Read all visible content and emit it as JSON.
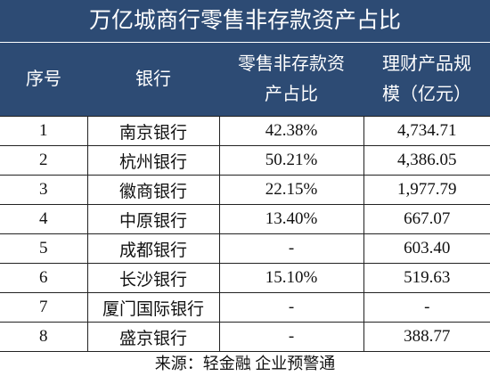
{
  "title": "万亿城商行零售非存款资产占比",
  "table": {
    "header": [
      "序号",
      "银行",
      "零售非存款资产占比",
      "理财产品规模（亿元）"
    ],
    "rows": [
      [
        "1",
        "南京银行",
        "42.38%",
        "4,734.71"
      ],
      [
        "2",
        "杭州银行",
        "50.21%",
        "4,386.05"
      ],
      [
        "3",
        "徽商银行",
        "22.15%",
        "1,977.79"
      ],
      [
        "4",
        "中原银行",
        "13.40%",
        "667.07"
      ],
      [
        "5",
        "成都银行",
        "-",
        "603.40"
      ],
      [
        "6",
        "长沙银行",
        "15.10%",
        "519.63"
      ],
      [
        "7",
        "厦门国际银行",
        "-",
        "-"
      ],
      [
        "8",
        "盛京银行",
        "-",
        "388.77"
      ]
    ]
  },
  "source": "来源：轻金融 企业预警通"
}
